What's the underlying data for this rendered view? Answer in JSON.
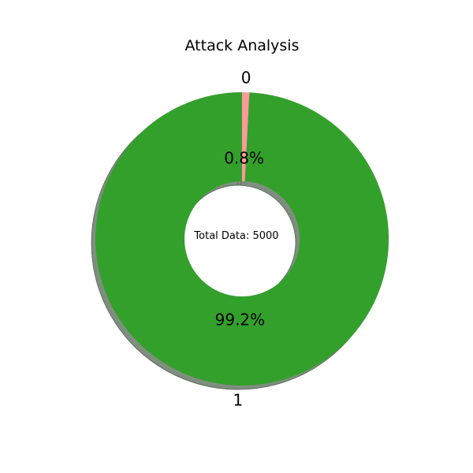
{
  "chart_data": {
    "type": "pie",
    "title": "Attack Analysis",
    "center_text": "Total Data: 5000",
    "categories": [
      "0",
      "1"
    ],
    "values": [
      40,
      4960
    ],
    "percent_labels": [
      "0.8%",
      "99.2%"
    ],
    "colors": [
      "#fb9a99",
      "#33a02c"
    ],
    "shadow_color": "#7f8f7f",
    "donut": true,
    "shadow": true,
    "start_angle": 90
  }
}
